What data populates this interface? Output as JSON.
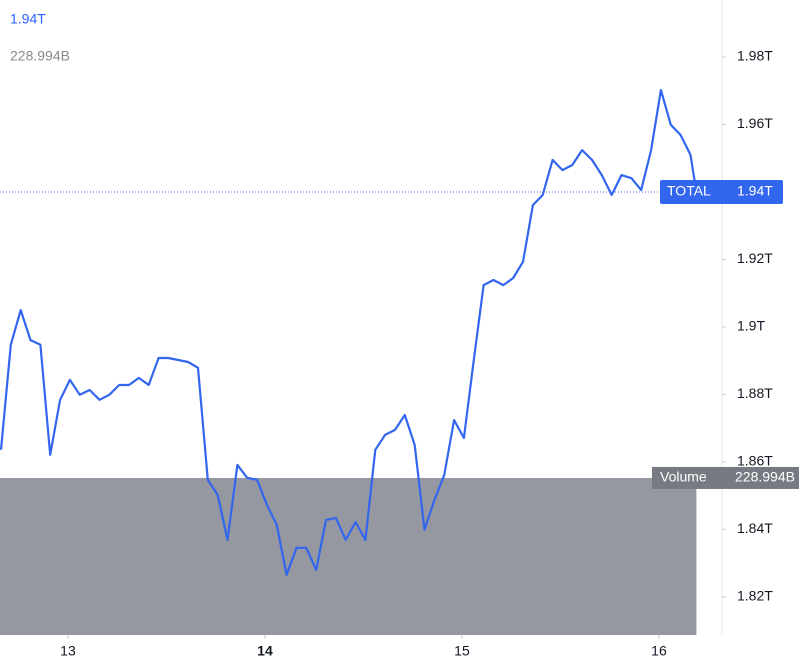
{
  "chart_data": {
    "type": "line",
    "header_value": "1.94T",
    "header_volume": "228.994B",
    "x": [
      12.66,
      12.71,
      12.76,
      12.81,
      12.86,
      12.91,
      12.96,
      13.01,
      13.06,
      13.11,
      13.16,
      13.21,
      13.26,
      13.31,
      13.36,
      13.41,
      13.46,
      13.51,
      13.56,
      13.61,
      13.66,
      13.71,
      13.76,
      13.81,
      13.86,
      13.91,
      13.96,
      14.01,
      14.06,
      14.11,
      14.16,
      14.21,
      14.26,
      14.31,
      14.36,
      14.41,
      14.46,
      14.51,
      14.56,
      14.61,
      14.66,
      14.71,
      14.76,
      14.81,
      14.86,
      14.91,
      14.96,
      15.01,
      15.06,
      15.11,
      15.16,
      15.21,
      15.26,
      15.31,
      15.36,
      15.41,
      15.46,
      15.51,
      15.56,
      15.61,
      15.66,
      15.71,
      15.76,
      15.81,
      15.86,
      15.91,
      15.96,
      16.01,
      16.06,
      16.11,
      16.16,
      16.19
    ],
    "series": [
      {
        "name": "TOTAL",
        "color": "#3366ee",
        "last_label": "1.94T",
        "values": [
          1.8636,
          1.8947,
          1.905,
          1.8961,
          1.8947,
          1.8621,
          1.8784,
          1.8843,
          1.8799,
          1.8813,
          1.8784,
          1.8799,
          1.8828,
          1.8828,
          1.8849,
          1.8828,
          1.8908,
          1.8908,
          1.8902,
          1.8896,
          1.8879,
          1.8547,
          1.8502,
          1.8369,
          1.8591,
          1.8553,
          1.8547,
          1.8473,
          1.8413,
          1.8265,
          1.8345,
          1.8345,
          1.828,
          1.8428,
          1.8434,
          1.8369,
          1.8422,
          1.8369,
          1.8636,
          1.868,
          1.8695,
          1.8739,
          1.865,
          1.8399,
          1.8487,
          1.8561,
          1.8724,
          1.8671,
          1.8902,
          1.9124,
          1.9139,
          1.9124,
          1.9145,
          1.9193,
          1.9361,
          1.9391,
          1.9495,
          1.9465,
          1.948,
          1.9524,
          1.9495,
          1.945,
          1.9391,
          1.945,
          1.9441,
          1.9406,
          1.9524,
          1.9702,
          1.9599,
          1.9569,
          1.951,
          1.94
        ]
      }
    ],
    "volume": {
      "name": "Volume",
      "value": 228.994,
      "label": "228.994B",
      "color": "#9598a1"
    },
    "y2lim": [
      0,
      926
    ],
    "xlim": [
      12.655,
      16.32
    ],
    "xticks": [
      13,
      14,
      15,
      16
    ],
    "ylim": [
      1.8087,
      1.9969
    ],
    "yticks": [
      {
        "value": 1.82,
        "label": "1.82T"
      },
      {
        "value": 1.84,
        "label": "1.84T"
      },
      {
        "value": 1.86,
        "label": "1.86T"
      },
      {
        "value": 1.88,
        "label": "1.88T"
      },
      {
        "value": 1.9,
        "label": "1.9T"
      },
      {
        "value": 1.92,
        "label": "1.92T"
      },
      {
        "value": 1.96,
        "label": "1.96T"
      },
      {
        "value": 1.98,
        "label": "1.98T"
      }
    ]
  }
}
